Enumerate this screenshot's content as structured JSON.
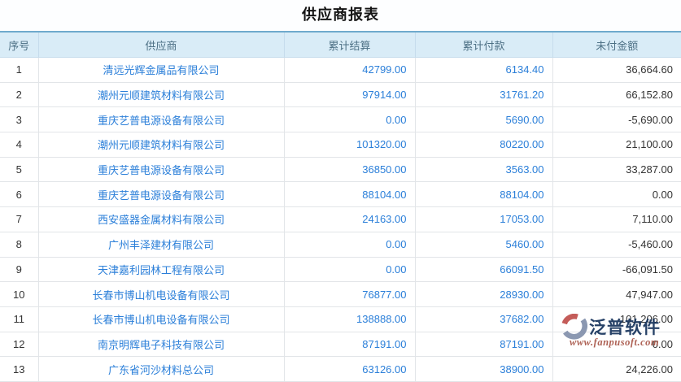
{
  "page": {
    "title": "供应商报表"
  },
  "table": {
    "columns": [
      "序号",
      "供应商",
      "累计结算",
      "累计付款",
      "未付金额"
    ],
    "rows": [
      {
        "index": "1",
        "supplier": "清远光辉金属品有限公司",
        "settled": "42799.00",
        "paid": "6134.40",
        "unpaid": "36,664.60"
      },
      {
        "index": "2",
        "supplier": "潮州元顺建筑材料有限公司",
        "settled": "97914.00",
        "paid": "31761.20",
        "unpaid": "66,152.80"
      },
      {
        "index": "3",
        "supplier": "重庆艺普电源设备有限公司",
        "settled": "0.00",
        "paid": "5690.00",
        "unpaid": "-5,690.00"
      },
      {
        "index": "4",
        "supplier": "潮州元顺建筑材料有限公司",
        "settled": "101320.00",
        "paid": "80220.00",
        "unpaid": "21,100.00"
      },
      {
        "index": "5",
        "supplier": "重庆艺普电源设备有限公司",
        "settled": "36850.00",
        "paid": "3563.00",
        "unpaid": "33,287.00"
      },
      {
        "index": "6",
        "supplier": "重庆艺普电源设备有限公司",
        "settled": "88104.00",
        "paid": "88104.00",
        "unpaid": "0.00"
      },
      {
        "index": "7",
        "supplier": "西安盛器金属材料有限公司",
        "settled": "24163.00",
        "paid": "17053.00",
        "unpaid": "7,110.00"
      },
      {
        "index": "8",
        "supplier": "广州丰泽建材有限公司",
        "settled": "0.00",
        "paid": "5460.00",
        "unpaid": "-5,460.00"
      },
      {
        "index": "9",
        "supplier": "天津嘉利园林工程有限公司",
        "settled": "0.00",
        "paid": "66091.50",
        "unpaid": "-66,091.50"
      },
      {
        "index": "10",
        "supplier": "长春市博山机电设备有限公司",
        "settled": "76877.00",
        "paid": "28930.00",
        "unpaid": "47,947.00"
      },
      {
        "index": "11",
        "supplier": "长春市博山机电设备有限公司",
        "settled": "138888.00",
        "paid": "37682.00",
        "unpaid": "101,206.00"
      },
      {
        "index": "12",
        "supplier": "南京明辉电子科技有限公司",
        "settled": "87191.00",
        "paid": "87191.00",
        "unpaid": "0.00"
      },
      {
        "index": "13",
        "supplier": "广东省河沙材料总公司",
        "settled": "63126.00",
        "paid": "38900.00",
        "unpaid": "24,226.00"
      }
    ]
  },
  "watermark": {
    "brand": "泛普软件",
    "url": "www.fanpusoft.com"
  },
  "colors": {
    "link_blue": "#2b7fd9",
    "header_bg": "#d9ecf7",
    "header_text": "#4d7085",
    "table_top_border": "#6faacd",
    "watermark_brand": "#16335c",
    "watermark_url": "#a85648",
    "logo_orange": "#c0504d",
    "logo_slate": "#8391ac"
  }
}
